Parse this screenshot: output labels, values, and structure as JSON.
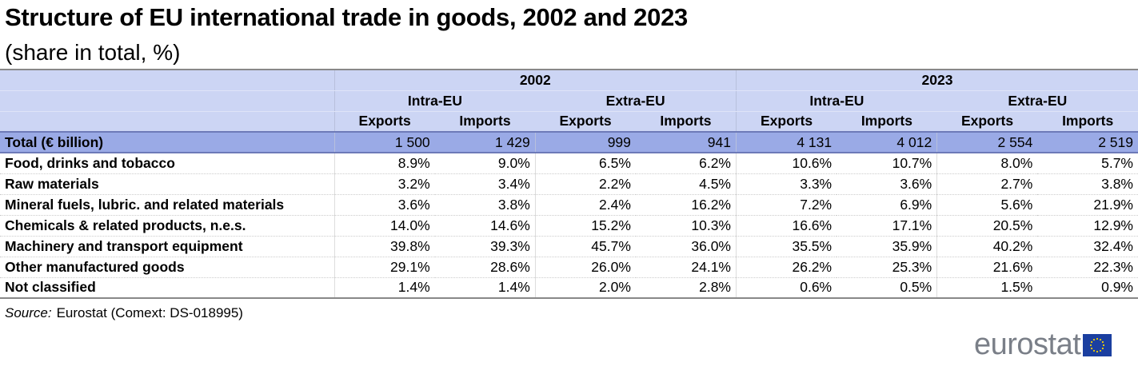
{
  "title": "Structure of EU international trade in goods, 2002 and 2023",
  "subtitle": "(share in total, %)",
  "source_label": "Source:",
  "source_text": "Eurostat (Comext: DS-018995)",
  "logo_text": "eurostat",
  "colors": {
    "header": "#ccd5f4",
    "total_row": "#9aaae6",
    "flag": "#1b3fa0",
    "stars": "#f5d200"
  },
  "chart_data": {
    "type": "table",
    "title": "Structure of EU international trade in goods, 2002 and 2023",
    "years": [
      "2002",
      "2023"
    ],
    "groups": [
      "Intra-EU",
      "Extra-EU",
      "Intra-EU",
      "Extra-EU"
    ],
    "columns": [
      "Exports",
      "Imports",
      "Exports",
      "Imports",
      "Exports",
      "Imports",
      "Exports",
      "Imports"
    ],
    "total": {
      "label": "Total (€ billion)",
      "values": [
        "1 500",
        "1 429",
        "999",
        "941",
        "4 131",
        "4 012",
        "2 554",
        "2 519"
      ]
    },
    "rows": [
      {
        "label": "Food, drinks and tobacco",
        "values": [
          "8.9%",
          "9.0%",
          "6.5%",
          "6.2%",
          "10.6%",
          "10.7%",
          "8.0%",
          "5.7%"
        ]
      },
      {
        "label": "Raw materials",
        "values": [
          "3.2%",
          "3.4%",
          "2.2%",
          "4.5%",
          "3.3%",
          "3.6%",
          "2.7%",
          "3.8%"
        ]
      },
      {
        "label": "Mineral fuels, lubric. and related materials",
        "values": [
          "3.6%",
          "3.8%",
          "2.4%",
          "16.2%",
          "7.2%",
          "6.9%",
          "5.6%",
          "21.9%"
        ]
      },
      {
        "label": "Chemicals & related products, n.e.s.",
        "values": [
          "14.0%",
          "14.6%",
          "15.2%",
          "10.3%",
          "16.6%",
          "17.1%",
          "20.5%",
          "12.9%"
        ]
      },
      {
        "label": "Machinery and transport equipment",
        "values": [
          "39.8%",
          "39.3%",
          "45.7%",
          "36.0%",
          "35.5%",
          "35.9%",
          "40.2%",
          "32.4%"
        ]
      },
      {
        "label": "Other manufactured goods",
        "values": [
          "29.1%",
          "28.6%",
          "26.0%",
          "24.1%",
          "26.2%",
          "25.3%",
          "21.6%",
          "22.3%"
        ]
      },
      {
        "label": "Not classified",
        "values": [
          "1.4%",
          "1.4%",
          "2.0%",
          "2.8%",
          "0.6%",
          "0.5%",
          "1.5%",
          "0.9%"
        ]
      }
    ]
  }
}
